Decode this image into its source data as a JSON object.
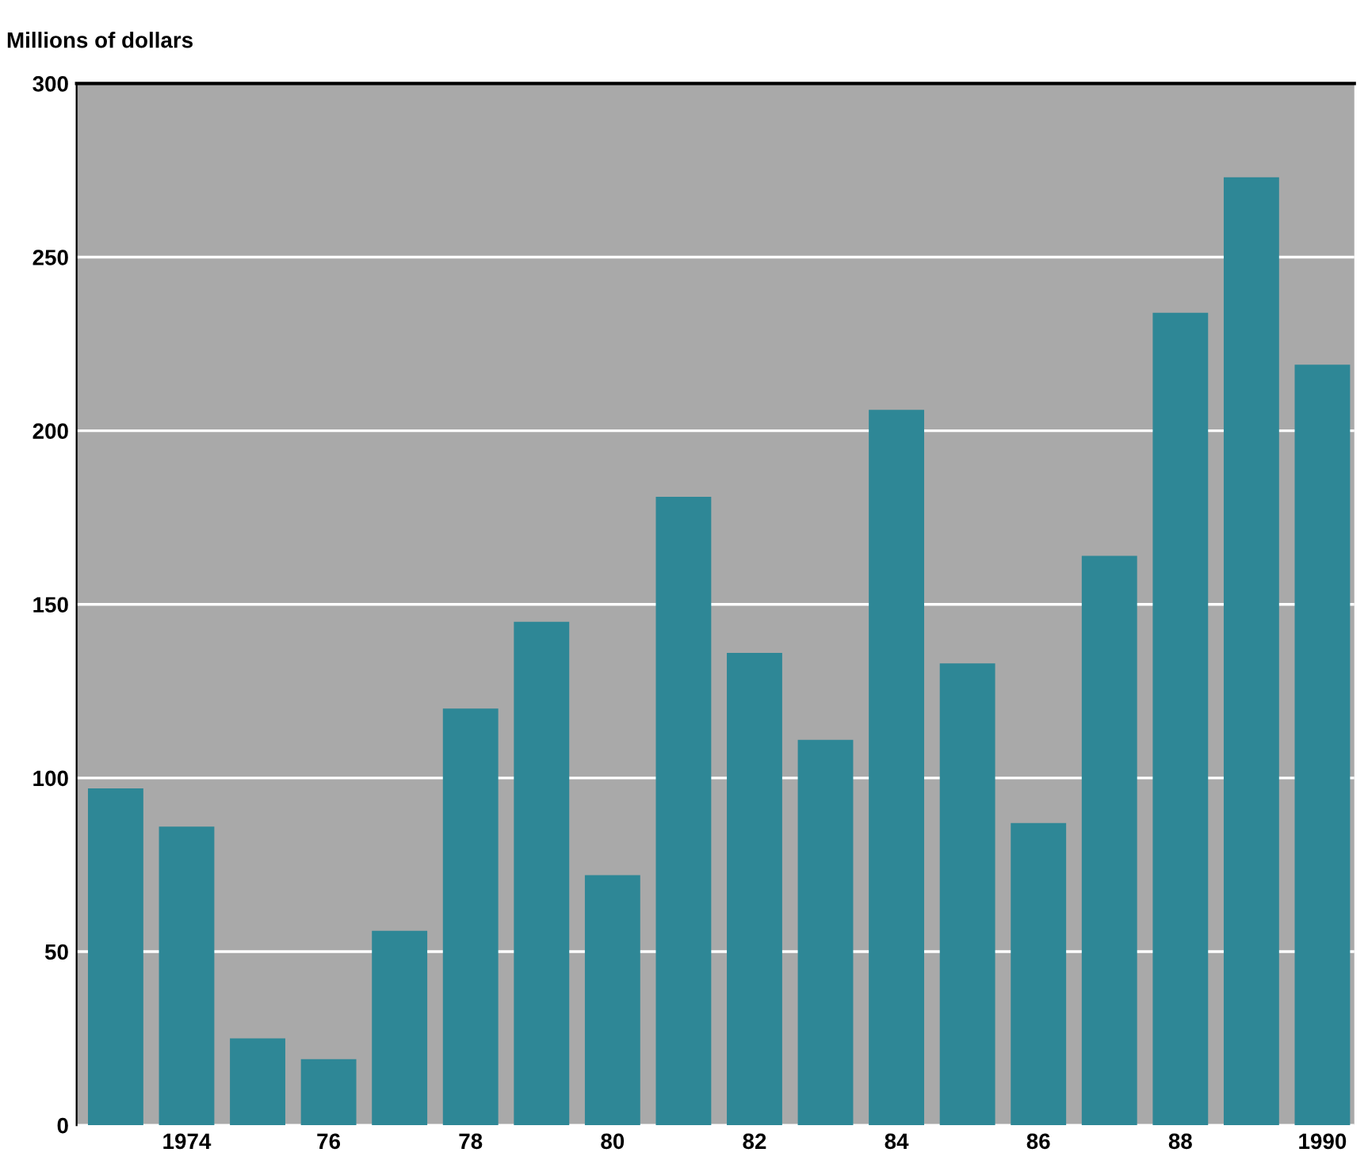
{
  "chart_data": {
    "type": "bar",
    "ylabel": "Millions of dollars",
    "categories": [
      null,
      "1974",
      null,
      "76",
      null,
      "78",
      null,
      "80",
      null,
      "82",
      null,
      "84",
      null,
      "86",
      null,
      "88",
      null,
      "1990"
    ],
    "values": [
      97,
      86,
      25,
      19,
      56,
      120,
      145,
      72,
      181,
      136,
      111,
      206,
      133,
      87,
      164,
      234,
      273,
      219
    ],
    "color": "#2e8796",
    "ylim": [
      0,
      300
    ],
    "yticks": [
      0,
      50,
      100,
      150,
      200,
      250,
      300
    ],
    "grid": "y"
  }
}
